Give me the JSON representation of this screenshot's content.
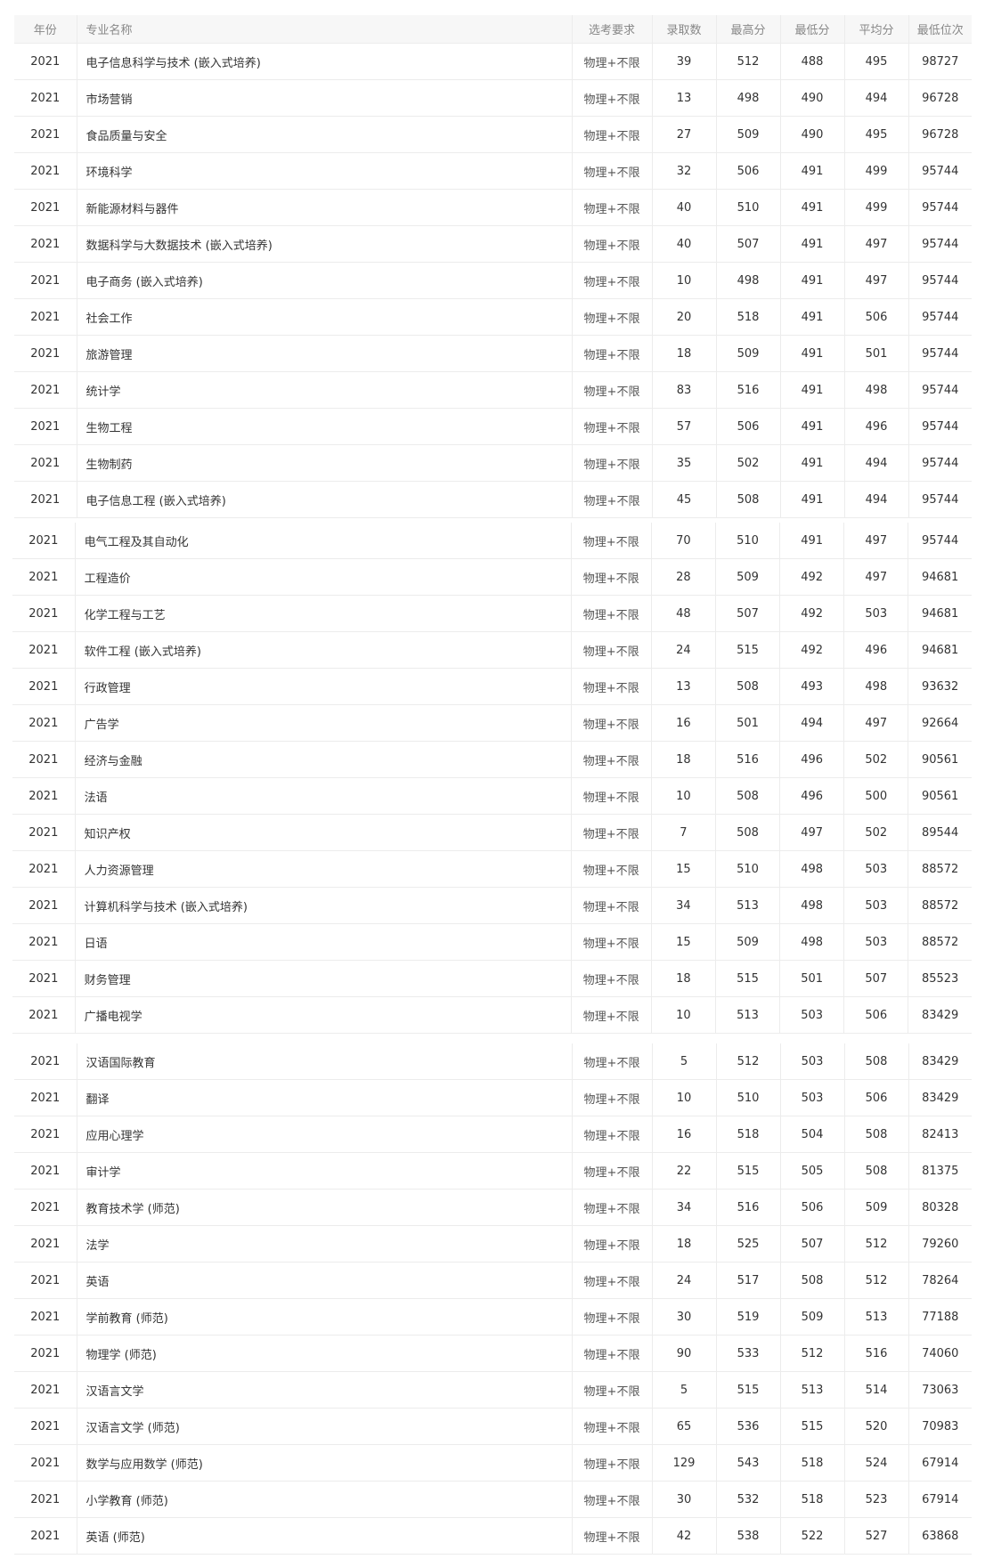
{
  "headers": [
    "年份",
    "专业名称",
    "选考要求",
    "录取数",
    "最高分",
    "最低分",
    "平均分",
    "最低位次"
  ],
  "segments": [
    [
      [
        "2021",
        "电子信息科学与技术 (嵌入式培养)",
        "物理+不限",
        "39",
        "512",
        "488",
        "495",
        "98727"
      ],
      [
        "2021",
        "市场营销",
        "物理+不限",
        "13",
        "498",
        "490",
        "494",
        "96728"
      ],
      [
        "2021",
        "食品质量与安全",
        "物理+不限",
        "27",
        "509",
        "490",
        "495",
        "96728"
      ],
      [
        "2021",
        "环境科学",
        "物理+不限",
        "32",
        "506",
        "491",
        "499",
        "95744"
      ],
      [
        "2021",
        "新能源材料与器件",
        "物理+不限",
        "40",
        "510",
        "491",
        "499",
        "95744"
      ],
      [
        "2021",
        "数据科学与大数据技术 (嵌入式培养)",
        "物理+不限",
        "40",
        "507",
        "491",
        "497",
        "95744"
      ],
      [
        "2021",
        "电子商务 (嵌入式培养)",
        "物理+不限",
        "10",
        "498",
        "491",
        "497",
        "95744"
      ],
      [
        "2021",
        "社会工作",
        "物理+不限",
        "20",
        "518",
        "491",
        "506",
        "95744"
      ],
      [
        "2021",
        "旅游管理",
        "物理+不限",
        "18",
        "509",
        "491",
        "501",
        "95744"
      ],
      [
        "2021",
        "统计学",
        "物理+不限",
        "83",
        "516",
        "491",
        "498",
        "95744"
      ],
      [
        "2021",
        "生物工程",
        "物理+不限",
        "57",
        "506",
        "491",
        "496",
        "95744"
      ],
      [
        "2021",
        "生物制药",
        "物理+不限",
        "35",
        "502",
        "491",
        "494",
        "95744"
      ],
      [
        "2021",
        "电子信息工程 (嵌入式培养)",
        "物理+不限",
        "45",
        "508",
        "491",
        "494",
        "95744"
      ]
    ],
    [
      [
        "2021",
        "电气工程及其自动化",
        "物理+不限",
        "70",
        "510",
        "491",
        "497",
        "95744"
      ],
      [
        "2021",
        "工程造价",
        "物理+不限",
        "28",
        "509",
        "492",
        "497",
        "94681"
      ],
      [
        "2021",
        "化学工程与工艺",
        "物理+不限",
        "48",
        "507",
        "492",
        "503",
        "94681"
      ],
      [
        "2021",
        "软件工程 (嵌入式培养)",
        "物理+不限",
        "24",
        "515",
        "492",
        "496",
        "94681"
      ],
      [
        "2021",
        "行政管理",
        "物理+不限",
        "13",
        "508",
        "493",
        "498",
        "93632"
      ],
      [
        "2021",
        "广告学",
        "物理+不限",
        "16",
        "501",
        "494",
        "497",
        "92664"
      ],
      [
        "2021",
        "经济与金融",
        "物理+不限",
        "18",
        "516",
        "496",
        "502",
        "90561"
      ],
      [
        "2021",
        "法语",
        "物理+不限",
        "10",
        "508",
        "496",
        "500",
        "90561"
      ],
      [
        "2021",
        "知识产权",
        "物理+不限",
        "7",
        "508",
        "497",
        "502",
        "89544"
      ],
      [
        "2021",
        "人力资源管理",
        "物理+不限",
        "15",
        "510",
        "498",
        "503",
        "88572"
      ],
      [
        "2021",
        "计算机科学与技术 (嵌入式培养)",
        "物理+不限",
        "34",
        "513",
        "498",
        "503",
        "88572"
      ],
      [
        "2021",
        "日语",
        "物理+不限",
        "15",
        "509",
        "498",
        "503",
        "88572"
      ],
      [
        "2021",
        "财务管理",
        "物理+不限",
        "18",
        "515",
        "501",
        "507",
        "85523"
      ],
      [
        "2021",
        "广播电视学",
        "物理+不限",
        "10",
        "513",
        "503",
        "506",
        "83429"
      ]
    ],
    [
      [
        "2021",
        "汉语国际教育",
        "物理+不限",
        "5",
        "512",
        "503",
        "508",
        "83429"
      ],
      [
        "2021",
        "翻译",
        "物理+不限",
        "10",
        "510",
        "503",
        "506",
        "83429"
      ],
      [
        "2021",
        "应用心理学",
        "物理+不限",
        "16",
        "518",
        "504",
        "508",
        "82413"
      ],
      [
        "2021",
        "审计学",
        "物理+不限",
        "22",
        "515",
        "505",
        "508",
        "81375"
      ],
      [
        "2021",
        "教育技术学 (师范)",
        "物理+不限",
        "34",
        "516",
        "506",
        "509",
        "80328"
      ],
      [
        "2021",
        "法学",
        "物理+不限",
        "18",
        "525",
        "507",
        "512",
        "79260"
      ],
      [
        "2021",
        "英语",
        "物理+不限",
        "24",
        "517",
        "508",
        "512",
        "78264"
      ],
      [
        "2021",
        "学前教育 (师范)",
        "物理+不限",
        "30",
        "519",
        "509",
        "513",
        "77188"
      ],
      [
        "2021",
        "物理学 (师范)",
        "物理+不限",
        "90",
        "533",
        "512",
        "516",
        "74060"
      ],
      [
        "2021",
        "汉语言文学",
        "物理+不限",
        "5",
        "515",
        "513",
        "514",
        "73063"
      ],
      [
        "2021",
        "汉语言文学 (师范)",
        "物理+不限",
        "65",
        "536",
        "515",
        "520",
        "70983"
      ],
      [
        "2021",
        "数学与应用数学 (师范)",
        "物理+不限",
        "129",
        "543",
        "518",
        "524",
        "67914"
      ],
      [
        "2021",
        "小学教育 (师范)",
        "物理+不限",
        "30",
        "532",
        "518",
        "523",
        "67914"
      ],
      [
        "2021",
        "英语 (师范)",
        "物理+不限",
        "42",
        "538",
        "522",
        "527",
        "63868"
      ]
    ]
  ]
}
